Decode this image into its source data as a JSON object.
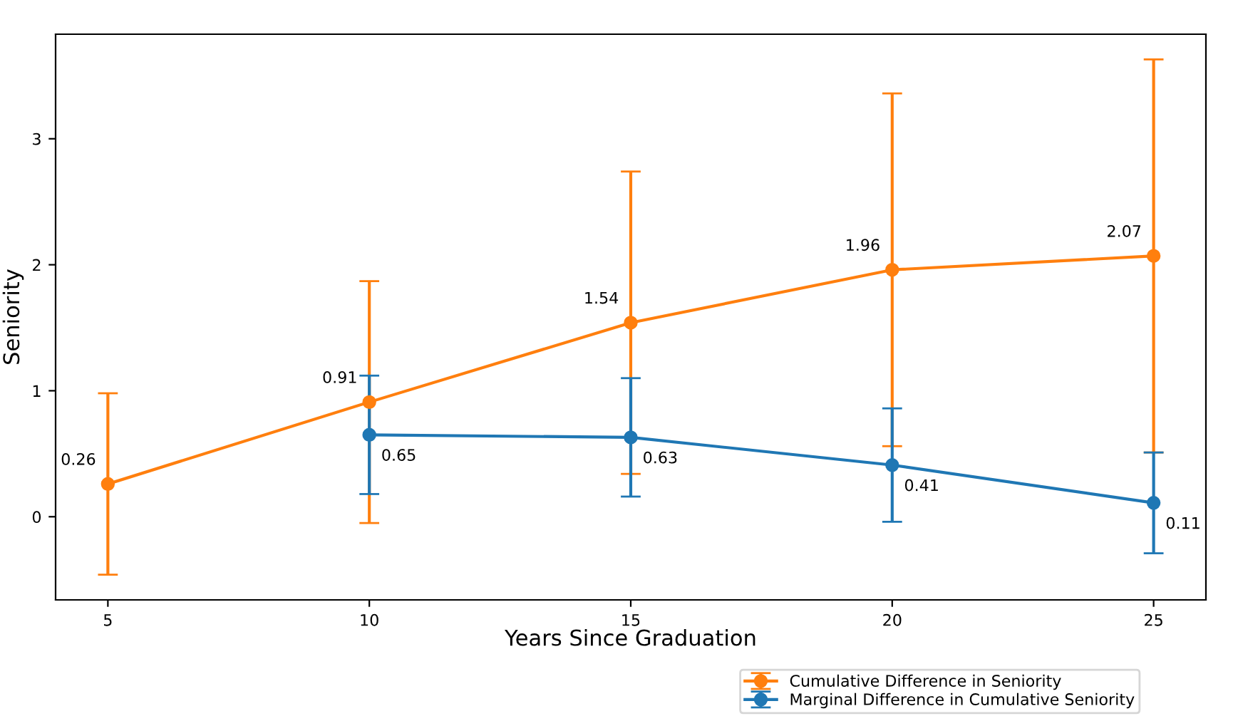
{
  "chart_data": {
    "type": "line",
    "xlabel": "Years Since Graduation",
    "ylabel": "Seniority",
    "x": [
      5,
      10,
      15,
      20,
      25
    ],
    "series": [
      {
        "name": "Cumulative Difference in Seniority",
        "color": "#ff7f0e",
        "values": [
          0.26,
          0.91,
          1.54,
          1.96,
          2.07
        ],
        "errors": [
          0.72,
          0.96,
          1.2,
          1.4,
          1.56
        ]
      },
      {
        "name": "Marginal Difference in Cumulative Seniority",
        "color": "#1f77b4",
        "values": [
          null,
          0.65,
          0.63,
          0.41,
          0.11
        ],
        "errors": [
          null,
          0.47,
          0.47,
          0.45,
          0.4
        ]
      }
    ],
    "xlim": [
      4,
      26
    ],
    "xticks": [
      5,
      10,
      15,
      20,
      25
    ],
    "ylim": [
      -0.66,
      3.83
    ],
    "yticks": [
      0,
      1,
      2,
      3
    ],
    "data_labels": true,
    "marker": "circle",
    "line_style": "solid",
    "grid": false,
    "legend": "bottom right"
  }
}
